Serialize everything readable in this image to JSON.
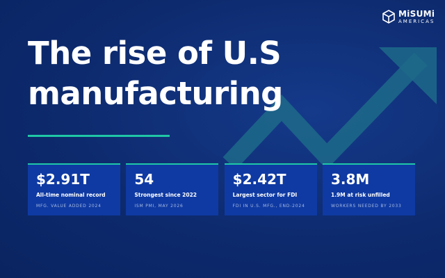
{
  "logo": {
    "name": "MiSUMi",
    "sub": "AMERICAS"
  },
  "headline": {
    "line1": "The rise of U.S",
    "line2": "manufacturing"
  },
  "cards": [
    {
      "value": "$2.91T",
      "description": "All-time nominal record",
      "source": "MFG. VALUE ADDED 2024"
    },
    {
      "value": "54",
      "description": "Strongest since 2022",
      "source": "ISM PMI, MAY 2026"
    },
    {
      "value": "$2.42T",
      "description": "Largest sector for FDI",
      "source": "FDI IN U.S. MFG., END-2024"
    },
    {
      "value": "3.8M",
      "description": "1.9M at risk unfilled",
      "source": "WORKERS NEEDED BY 2033"
    }
  ],
  "colors": {
    "background": "#0d2a6e",
    "card": "#0f3aa3",
    "accent": "#1fc7a6",
    "arrow": "#1d6e8c"
  }
}
